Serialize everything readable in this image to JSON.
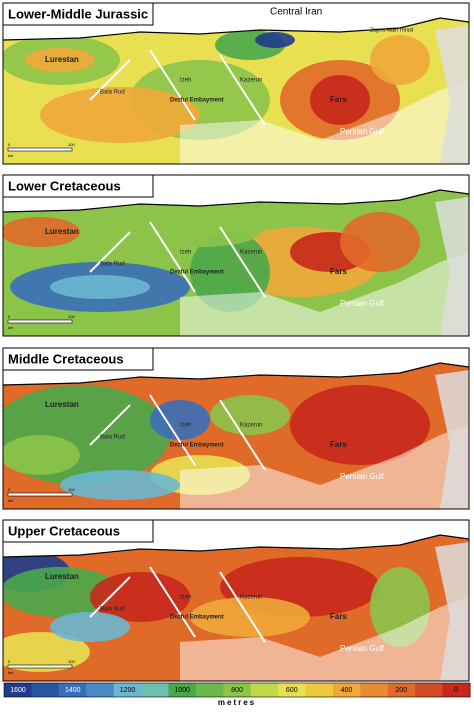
{
  "panels": [
    {
      "title": "Lower-Middle Jurassic",
      "extras": [
        "Central Iran",
        "Zagros Main Thrust"
      ],
      "places": [
        "Lurestan",
        "Bala Rud",
        "Izeh",
        "Dezful Embayment",
        "Kazerun",
        "Fars",
        "Persian Gulf"
      ],
      "scale": [
        "0",
        "100",
        "km"
      ]
    },
    {
      "title": "Lower Cretaceous",
      "places": [
        "Lurestan",
        "Bala Rud",
        "Izeh",
        "Dezful Embayment",
        "Kazerun",
        "Fars",
        "Persian Gulf"
      ],
      "scale": [
        "0",
        "100",
        "km"
      ]
    },
    {
      "title": "Middle Cretaceous",
      "places": [
        "Lurestan",
        "Bala Rud",
        "Izeh",
        "Dezful Embayment",
        "Kazerun",
        "Fars",
        "Persian Gulf"
      ],
      "scale": [
        "0",
        "100",
        "km"
      ]
    },
    {
      "title": "Upper Cretaceous",
      "places": [
        "Lurestan",
        "Bala Rud",
        "Izeh",
        "Dezful Embayment",
        "Kazerun",
        "Fars",
        "Persian Gulf"
      ],
      "scale": [
        "0",
        "100",
        "km"
      ]
    }
  ],
  "legend": {
    "labels": [
      1600,
      1400,
      1200,
      1000,
      800,
      600,
      400,
      200,
      0
    ],
    "unit": "metres"
  }
}
